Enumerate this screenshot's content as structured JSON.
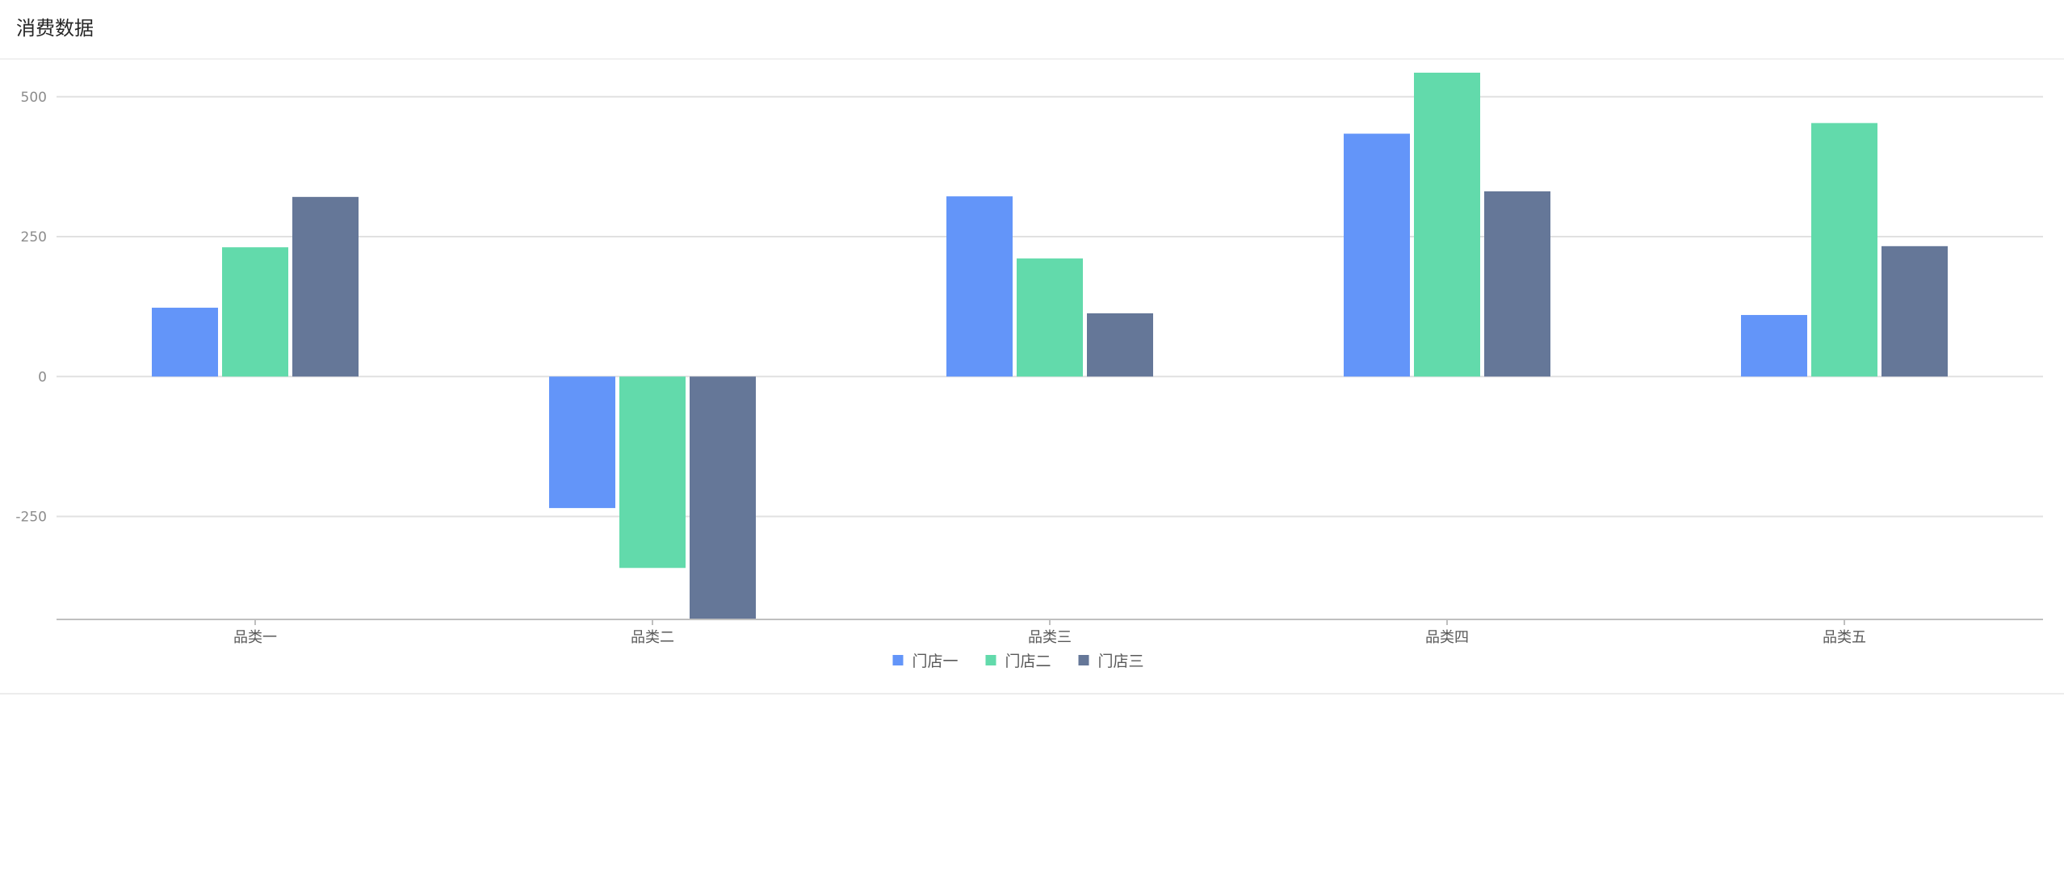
{
  "card": {
    "title": "消费数据"
  },
  "chart_data": {
    "type": "bar",
    "title": "",
    "xlabel": "",
    "ylabel": "",
    "categories": [
      "品类一",
      "品类二",
      "品类三",
      "品类四",
      "品类五"
    ],
    "series": [
      {
        "name": "门店一",
        "color": "#6395f9",
        "values": [
          123,
          -235,
          322,
          434,
          110
        ]
      },
      {
        "name": "门店二",
        "color": "#62daab",
        "values": [
          231,
          -342,
          211,
          543,
          453
        ]
      },
      {
        "name": "门店三",
        "color": "#657798",
        "values": [
          321,
          -434,
          113,
          331,
          233
        ]
      }
    ],
    "ylim": [
      -434,
      543
    ],
    "yticks": [
      "500",
      "250",
      "0",
      "-250"
    ],
    "grid": true,
    "legend": "bottom-center"
  }
}
